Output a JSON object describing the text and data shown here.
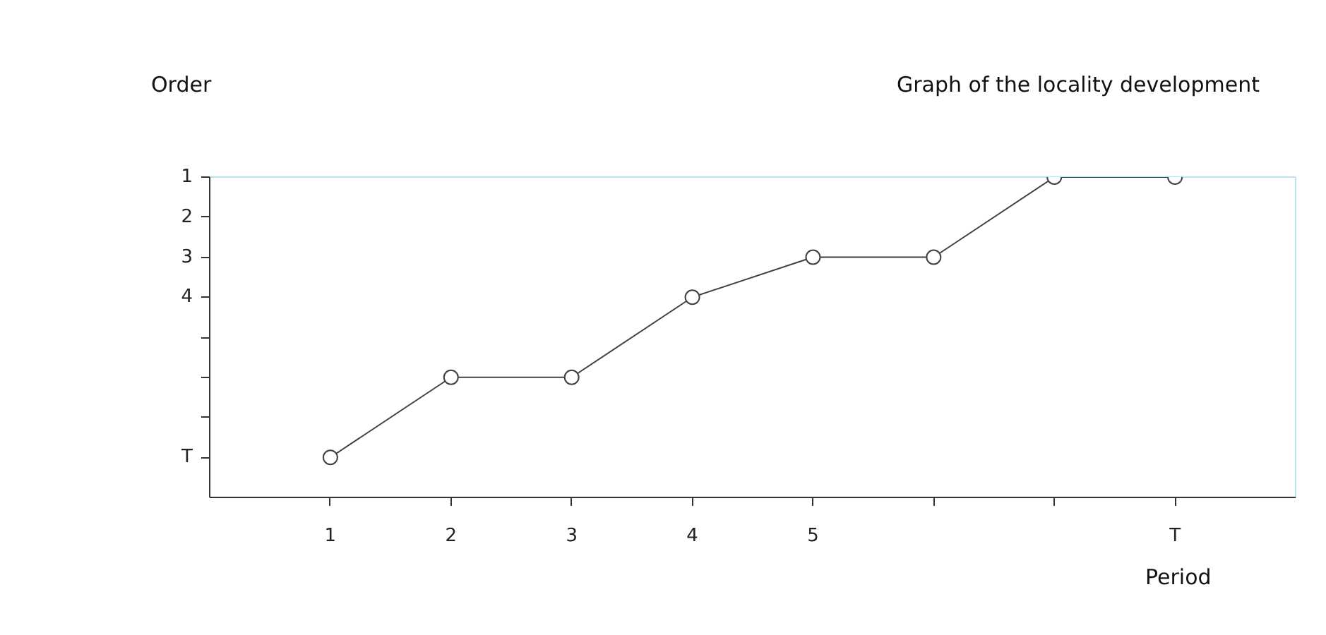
{
  "chart_data": {
    "type": "line",
    "title": "Graph of the locality development",
    "xlabel": "Period",
    "ylabel": "Order",
    "x": [
      1,
      2,
      3,
      4,
      5,
      6,
      7,
      8
    ],
    "series": [
      {
        "color": "#404040",
        "values": [
          8,
          6,
          6,
          4,
          3,
          3,
          1,
          1
        ]
      }
    ],
    "xlim": [
      0,
      9
    ],
    "ylim": [
      9,
      1
    ],
    "xticks": [
      1,
      2,
      3,
      4,
      5,
      {
        "value": 6,
        "label": null
      },
      {
        "value": 7,
        "label": null
      },
      {
        "value": 8,
        "label": "T"
      }
    ],
    "yticks": [
      1,
      2,
      3,
      4,
      {
        "value": 5,
        "label": null
      },
      {
        "value": 6,
        "label": null
      },
      {
        "value": 7,
        "label": null
      },
      {
        "value": 8,
        "label": "T"
      }
    ],
    "marker": "circle",
    "line_style": "solid",
    "grid": false
  }
}
